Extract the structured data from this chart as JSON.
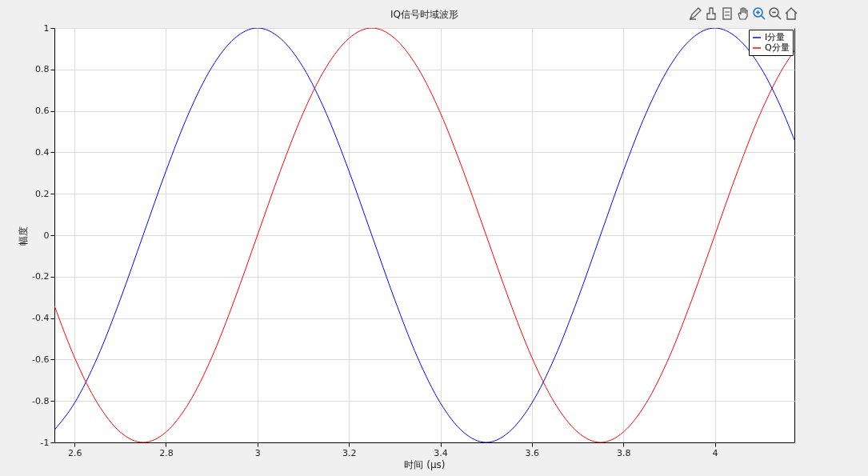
{
  "chart_data": {
    "type": "line",
    "title": "IQ信号时域波形",
    "xlabel": "时间 (μs)",
    "ylabel": "幅度",
    "x": [
      2.556,
      2.6,
      2.65,
      2.7,
      2.75,
      2.8,
      2.85,
      2.9,
      2.95,
      3.0,
      3.05,
      3.1,
      3.15,
      3.2,
      3.25,
      3.3,
      3.35,
      3.4,
      3.45,
      3.5,
      3.55,
      3.6,
      3.65,
      3.7,
      3.75,
      3.8,
      3.85,
      3.9,
      3.95,
      4.0,
      4.05,
      4.1,
      4.15,
      4.174
    ],
    "series": [
      {
        "name": "I分量",
        "color": "#0000ff",
        "values": [
          -0.94,
          -0.81,
          -0.59,
          -0.31,
          0,
          0.31,
          0.59,
          0.81,
          0.95,
          1,
          0.95,
          0.81,
          0.59,
          0.31,
          0,
          -0.31,
          -0.59,
          -0.81,
          -0.95,
          -1,
          -0.95,
          -0.81,
          -0.59,
          -0.31,
          0,
          0.31,
          0.59,
          0.81,
          0.95,
          1,
          0.95,
          0.81,
          0.59,
          0.46
        ]
      },
      {
        "name": "Q分量",
        "color": "#ff0000",
        "values": [
          -0.34,
          -0.59,
          -0.81,
          -0.95,
          -1,
          -0.95,
          -0.81,
          -0.59,
          -0.31,
          0,
          0.31,
          0.59,
          0.81,
          0.95,
          1,
          0.95,
          0.81,
          0.59,
          0.31,
          0,
          -0.31,
          -0.59,
          -0.81,
          -0.95,
          -1,
          -0.95,
          -0.81,
          -0.59,
          -0.31,
          0,
          0.31,
          0.59,
          0.81,
          0.89
        ]
      }
    ],
    "xlim": [
      2.556,
      4.174
    ],
    "xticks": [
      2.6,
      2.8,
      3,
      3.2,
      3.4,
      3.6,
      3.8,
      4
    ],
    "ylim": [
      -1,
      1
    ],
    "yticks": [
      -1,
      -0.8,
      -0.6,
      -0.4,
      -0.2,
      0,
      0.2,
      0.4,
      0.6,
      0.8,
      1
    ],
    "grid": true,
    "legend": "top right",
    "marker": "none",
    "line_style": "solid"
  }
}
